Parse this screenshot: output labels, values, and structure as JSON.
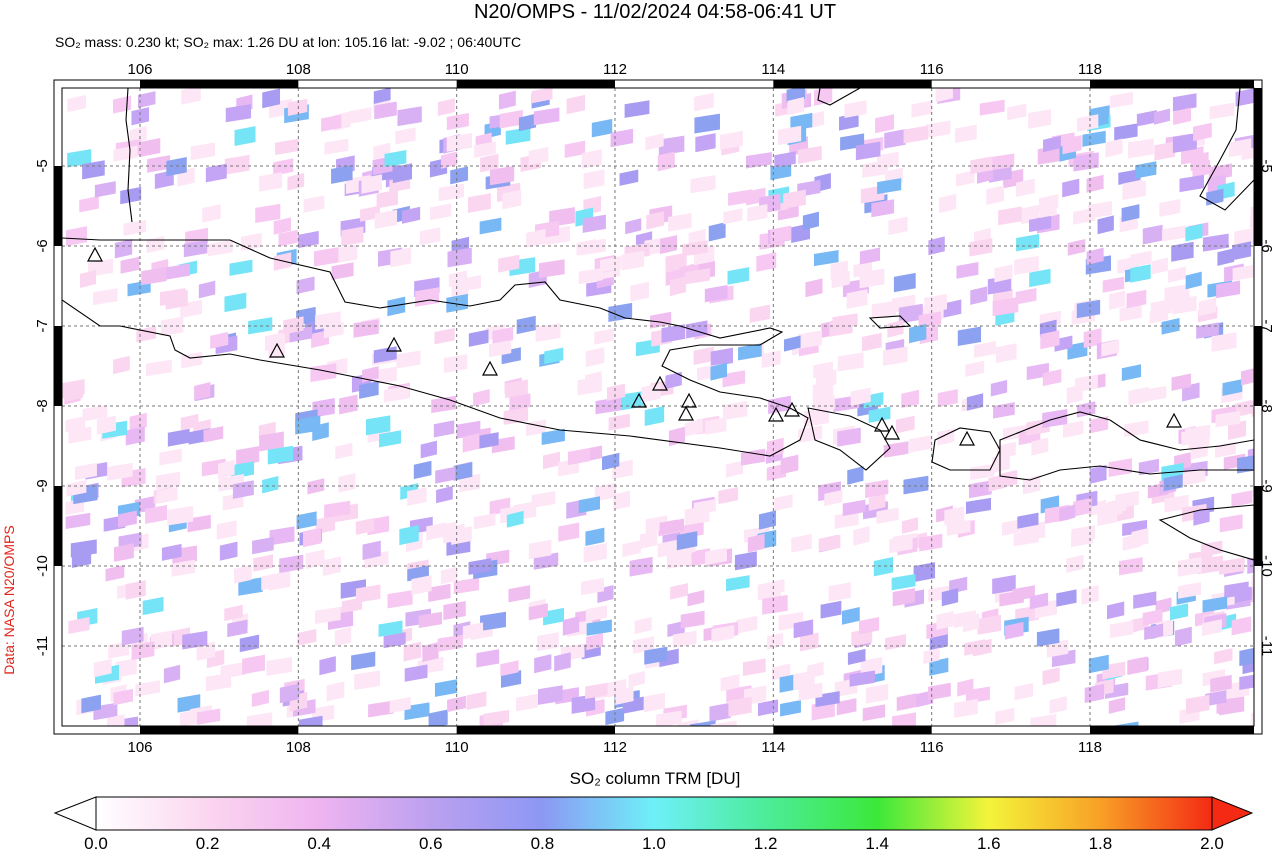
{
  "title": "N20/OMPS - 11/02/2024 04:58-06:41 UT",
  "subtitle": "SO₂ mass: 0.230 kt; SO₂ max: 1.26 DU at lon: 105.16 lat: -9.02 ; 06:40UTC",
  "map": {
    "lon_ticks": [
      106,
      108,
      110,
      112,
      114,
      116,
      118
    ],
    "lat_ticks": [
      -5,
      -6,
      -7,
      -8,
      -9,
      -10,
      -11
    ]
  },
  "credit": "Data: NASA N20/OMPS",
  "colorbar": {
    "label": "SO₂ column TRM [DU]",
    "ticks": [
      "0.0",
      "0.2",
      "0.4",
      "0.6",
      "0.8",
      "1.0",
      "1.2",
      "1.4",
      "1.6",
      "1.8",
      "2.0"
    ]
  }
}
